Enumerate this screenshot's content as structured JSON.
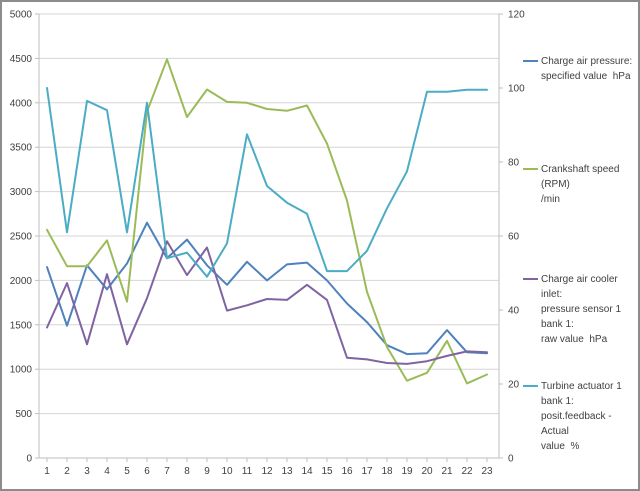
{
  "chart_data": {
    "type": "line",
    "title": "",
    "grid": "horizontal",
    "legend_position": "right",
    "x": [
      1,
      2,
      3,
      4,
      5,
      6,
      7,
      8,
      9,
      10,
      11,
      12,
      13,
      14,
      15,
      16,
      17,
      18,
      19,
      20,
      21,
      22,
      23
    ],
    "x_axis": {
      "labels": [
        "1",
        "2",
        "3",
        "4",
        "5",
        "6",
        "7",
        "8",
        "9",
        "10",
        "11",
        "12",
        "13",
        "14",
        "15",
        "16",
        "17",
        "18",
        "19",
        "20",
        "21",
        "22",
        "23"
      ]
    },
    "y_axis_left": {
      "min": 0,
      "max": 5000,
      "step": 500,
      "tick_labels": [
        "0",
        "500",
        "1000",
        "1500",
        "2000",
        "2500",
        "3000",
        "3500",
        "4000",
        "4500",
        "5000"
      ]
    },
    "y_axis_right": {
      "min": 0,
      "max": 120,
      "step": 20,
      "tick_labels": [
        "0",
        "20",
        "40",
        "60",
        "80",
        "100",
        "120"
      ]
    },
    "series": [
      {
        "name": "Charge air pressure: specified value hPa",
        "legend_lines": [
          "Charge air pressure:",
          "specified value  hPa"
        ],
        "color": "#4F81BD",
        "axis": "left",
        "values": [
          2150,
          1490,
          2170,
          1900,
          2190,
          2650,
          2250,
          2460,
          2170,
          1950,
          2210,
          2000,
          2180,
          2200,
          2000,
          1740,
          1530,
          1270,
          1170,
          1180,
          1440,
          1190,
          1180
        ]
      },
      {
        "name": "Crankshaft speed (RPM) /min",
        "legend_lines": [
          "Crankshaft speed (RPM)",
          "/min"
        ],
        "color": "#9BBB59",
        "axis": "left",
        "values": [
          2570,
          2160,
          2160,
          2450,
          1760,
          3900,
          4490,
          3840,
          4150,
          4010,
          4000,
          3930,
          3910,
          3970,
          3540,
          2900,
          1870,
          1250,
          870,
          960,
          1320,
          840,
          940
        ]
      },
      {
        "name": "Charge air cooler inlet: pressure sensor 1 bank 1: raw value hPa",
        "legend_lines": [
          "Charge air cooler inlet:",
          "pressure sensor 1 bank 1:",
          "raw value  hPa"
        ],
        "color": "#8064A2",
        "axis": "left",
        "values": [
          1470,
          1970,
          1280,
          2070,
          1280,
          1800,
          2440,
          2060,
          2370,
          1660,
          1720,
          1790,
          1780,
          1950,
          1780,
          1130,
          1110,
          1070,
          1060,
          1090,
          1150,
          1200,
          1190
        ]
      },
      {
        "name": "Turbine actuator 1 bank 1: posit.feedback - Actual value %",
        "legend_lines": [
          "Turbine actuator 1 bank 1:",
          "posit.feedback - Actual",
          "value  %"
        ],
        "color": "#4BACC6",
        "axis": "right",
        "values": [
          100,
          61,
          96.5,
          94,
          61,
          96,
          54,
          55.5,
          49,
          58,
          87.5,
          73.5,
          69,
          66,
          50.5,
          50.5,
          56,
          67.5,
          77.5,
          99,
          99,
          99.5,
          99.5
        ]
      }
    ]
  },
  "colors": {
    "background": "#FFFFFF",
    "gridline": "#D6D6D6",
    "axis_line": "#BFBFBF",
    "tick_text": "#3F3F3F",
    "legend_text": "#404040",
    "frame": "#8C8C8C"
  }
}
